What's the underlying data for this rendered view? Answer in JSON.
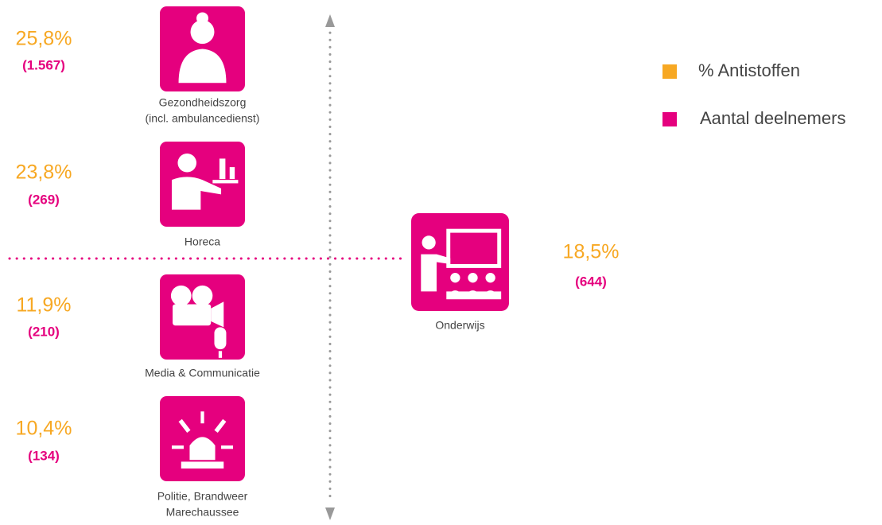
{
  "legend": [
    {
      "label": "% Antistoffen",
      "color": "#f7a823"
    },
    {
      "label": "Aantal deelnemers",
      "color": "#e5007e"
    }
  ],
  "sectors": [
    {
      "percent": "25,8%",
      "count": "(1.567)",
      "label": [
        "Gezondheidszorg",
        "(incl. ambulancedienst)"
      ]
    },
    {
      "percent": "23,8%",
      "count": "(269)",
      "label": [
        "Horeca"
      ]
    },
    {
      "percent": "11,9%",
      "count": "(210)",
      "label": [
        "Media & Communicatie"
      ]
    },
    {
      "percent": "10,4%",
      "count": "(134)",
      "label": [
        "Politie, Brandweer",
        "Marechaussee"
      ]
    },
    {
      "percent": "18,5%",
      "count": "(644)",
      "label": [
        "Onderwijs"
      ]
    }
  ]
}
